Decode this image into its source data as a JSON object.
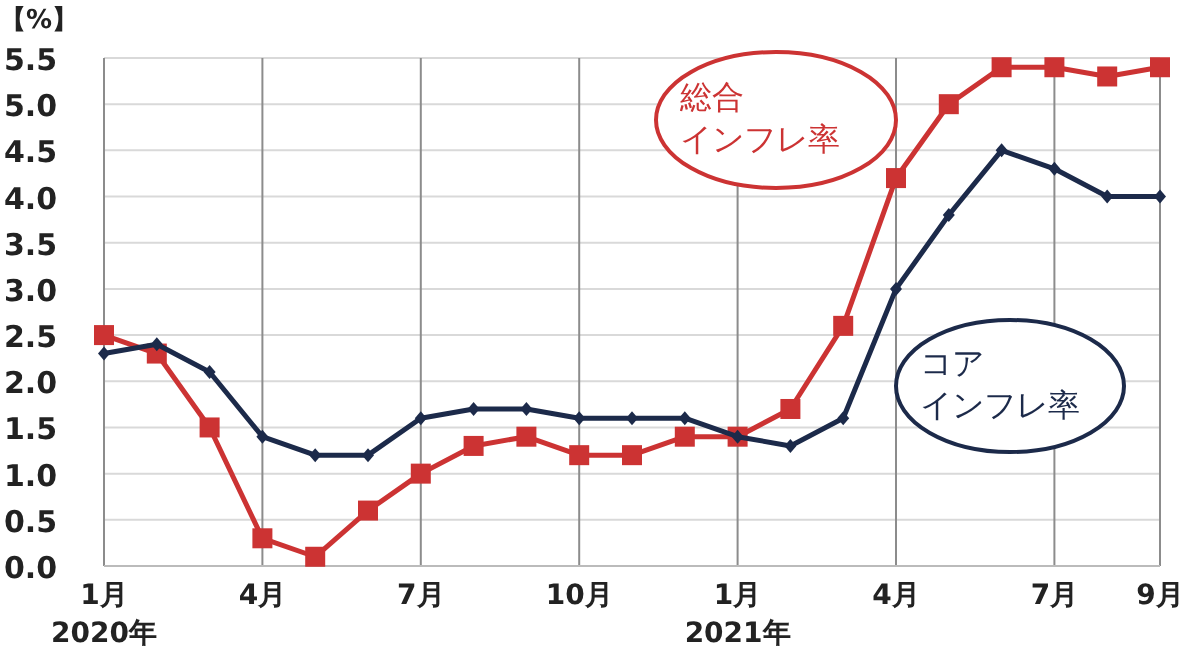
{
  "chart_data": {
    "type": "line",
    "ylabel": "【%】",
    "categories": [
      "1月\n2020年",
      null,
      null,
      "4月",
      null,
      null,
      "7月",
      null,
      null,
      "10月",
      null,
      null,
      "1月\n2021年",
      null,
      null,
      "4月",
      null,
      null,
      "7月",
      null,
      "9月"
    ],
    "ylim": [
      0,
      5.5
    ],
    "yticks": [
      {
        "value": 0,
        "label": "0.0"
      },
      0.5,
      {
        "value": 1,
        "label": "1.0"
      },
      1.5,
      {
        "value": 2,
        "label": "2.0"
      },
      2.5,
      {
        "value": 3,
        "label": "3.0"
      },
      3.5,
      {
        "value": 4,
        "label": "4.0"
      },
      4.5,
      {
        "value": 5,
        "label": "5.0"
      },
      5.5
    ],
    "grid": true,
    "series": [
      {
        "name": "総合インフレ率",
        "color": "#cc3333",
        "marker": "square",
        "values": [
          2.5,
          2.3,
          1.5,
          0.3,
          0.1,
          0.6,
          1.0,
          1.3,
          1.4,
          1.2,
          1.2,
          1.4,
          1.4,
          1.7,
          2.6,
          4.2,
          5.0,
          5.4,
          5.4,
          5.3,
          5.4
        ]
      },
      {
        "name": "コアインフレ率",
        "color": "#1c2a4a",
        "marker": "diamond",
        "values": [
          2.3,
          2.4,
          2.1,
          1.4,
          1.2,
          1.2,
          1.6,
          1.7,
          1.7,
          1.6,
          1.6,
          1.6,
          1.4,
          1.3,
          1.6,
          3.0,
          3.8,
          4.5,
          4.3,
          4.0,
          4.0
        ]
      }
    ]
  }
}
